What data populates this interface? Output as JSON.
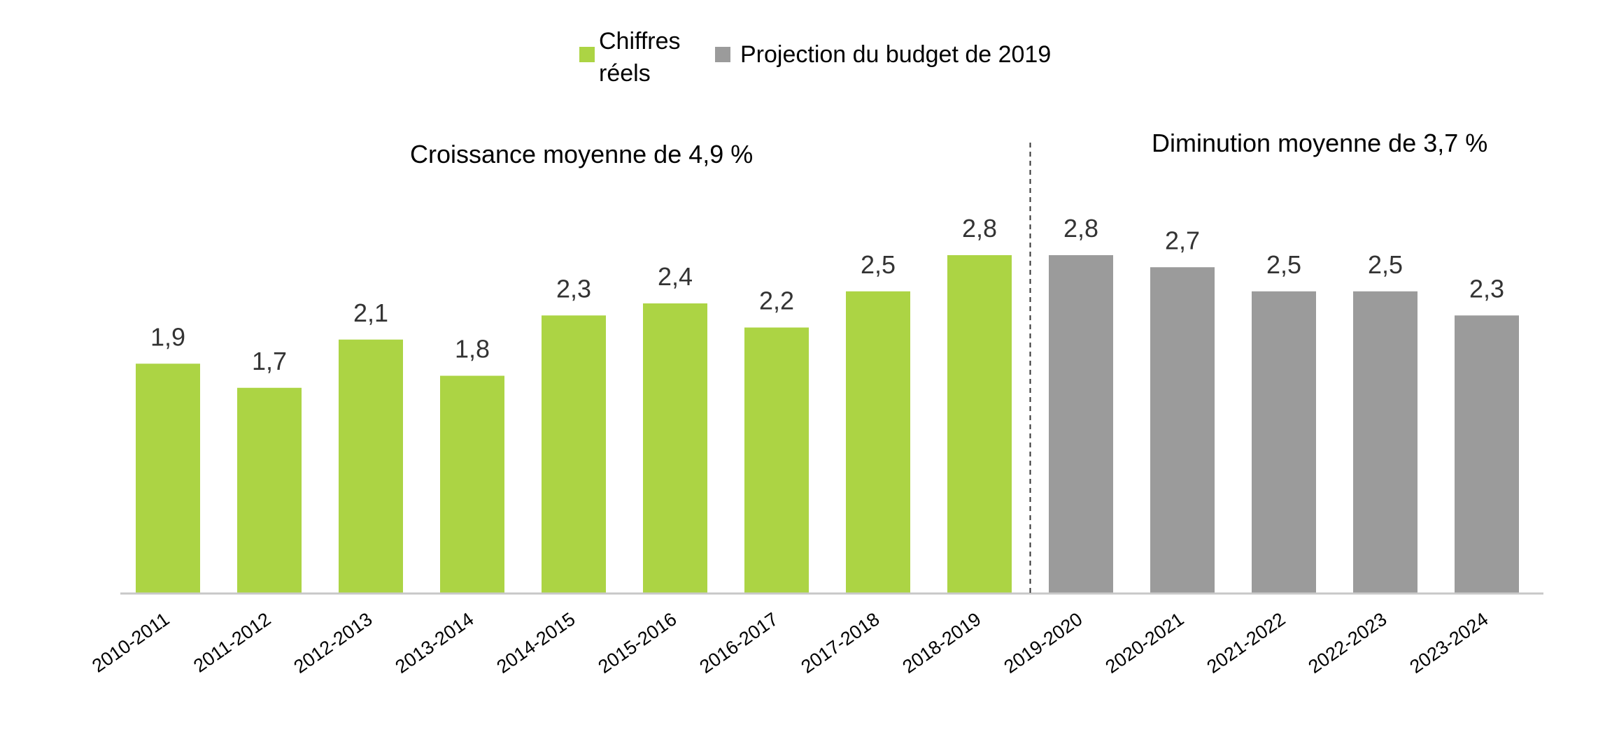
{
  "chart_data": {
    "type": "bar",
    "title": "",
    "xlabel": "",
    "ylabel": "",
    "ylim": [
      0,
      3.3
    ],
    "categories": [
      "2010-2011",
      "2011-2012",
      "2012-2013",
      "2013-2014",
      "2014-2015",
      "2015-2016",
      "2016-2017",
      "2017-2018",
      "2018-2019",
      "2019-2020",
      "2020-2021",
      "2021-2022",
      "2022-2023",
      "2023-2024"
    ],
    "series": [
      {
        "name": "Chiffres réels",
        "color": "#acd444",
        "values": [
          1.9,
          1.7,
          2.1,
          1.8,
          2.3,
          2.4,
          2.2,
          2.5,
          2.8,
          null,
          null,
          null,
          null,
          null
        ]
      },
      {
        "name": "Projection du budget de 2019",
        "color": "#9b9b9b",
        "values": [
          null,
          null,
          null,
          null,
          null,
          null,
          null,
          null,
          null,
          2.8,
          2.7,
          2.5,
          2.5,
          2.3
        ]
      }
    ],
    "data_labels": [
      "1,9",
      "1,7",
      "2,1",
      "1,8",
      "2,3",
      "2,4",
      "2,2",
      "2,5",
      "2,8",
      "2,8",
      "2,7",
      "2,5",
      "2,5",
      "2,3"
    ],
    "legend": {
      "position": "top-center",
      "items": [
        {
          "label": "Chiffres réels",
          "color": "#acd444"
        },
        {
          "label": "Projection du budget de 2019",
          "color": "#9b9b9b"
        }
      ]
    },
    "annotations": {
      "left": "Croissance moyenne de 4,9 %",
      "right": "Diminution moyenne de 3,7 %"
    },
    "divider_after_category": "2018-2019",
    "grid": false
  }
}
